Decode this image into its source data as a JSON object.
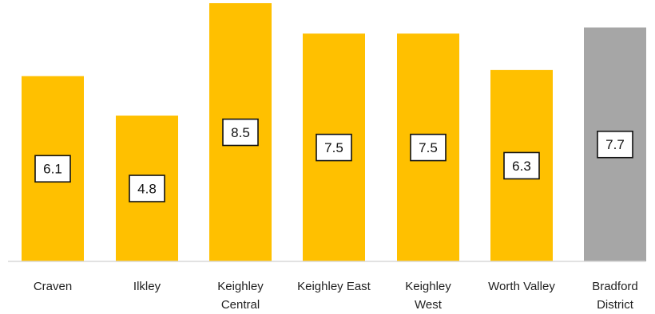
{
  "chart_data": {
    "type": "bar",
    "title": "",
    "xlabel": "",
    "ylabel": "",
    "categories": [
      "Craven",
      "Ilkley",
      "Keighley Central",
      "Keighley East",
      "Keighley West",
      "Worth Valley",
      "Bradford District"
    ],
    "category_lines": [
      [
        "Craven"
      ],
      [
        "Ilkley"
      ],
      [
        "Keighley",
        "Central"
      ],
      [
        "Keighley East"
      ],
      [
        "Keighley",
        "West"
      ],
      [
        "Worth Valley"
      ],
      [
        "Bradford",
        "District"
      ]
    ],
    "values": [
      6.1,
      4.8,
      8.5,
      7.5,
      7.5,
      6.3,
      7.7
    ],
    "value_labels": [
      "6.1",
      "4.8",
      "8.5",
      "7.5",
      "7.5",
      "6.3",
      "7.7"
    ],
    "ylim": [
      0,
      8.5
    ],
    "grid": false,
    "legend": "none",
    "bar_colors": [
      "#FFC000",
      "#FFC000",
      "#FFC000",
      "#FFC000",
      "#FFC000",
      "#FFC000",
      "#A6A6A6"
    ]
  }
}
